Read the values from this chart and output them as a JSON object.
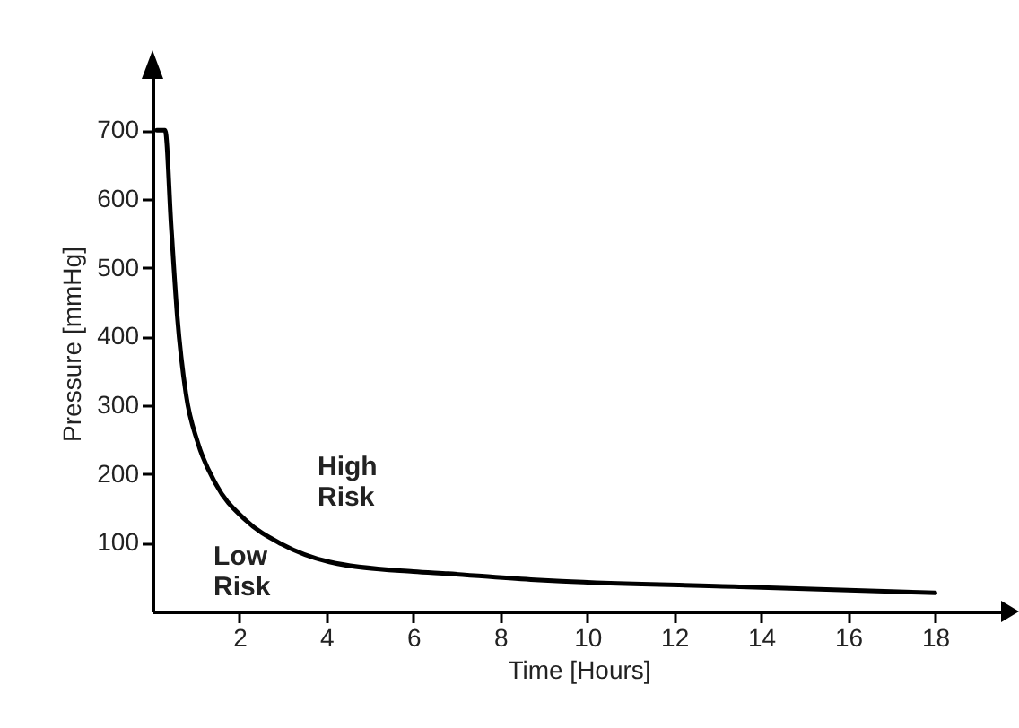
{
  "chart_data": {
    "type": "line",
    "xlabel": "Time [Hours]",
    "ylabel": "Pressure [mmHg]",
    "x": [
      0.1,
      0.29,
      0.43,
      0.57,
      0.77,
      1.04,
      1.46,
      2.14,
      2.97,
      4.07,
      6.0,
      6.8,
      8.8,
      9.4,
      13.5,
      18.0
    ],
    "values": [
      700,
      700,
      560,
      429,
      316,
      246,
      185,
      133,
      98,
      72,
      58,
      55,
      46,
      44,
      36,
      27
    ],
    "color": "#000000",
    "xlim": [
      0,
      19.6
    ],
    "ylim": [
      0,
      780
    ],
    "xticks": [
      2,
      4,
      6,
      8,
      10,
      12,
      14,
      16,
      18
    ],
    "yticks": [
      100,
      200,
      300,
      400,
      500,
      600,
      700
    ],
    "annotations": [
      "High Risk",
      "Low Risk"
    ]
  }
}
